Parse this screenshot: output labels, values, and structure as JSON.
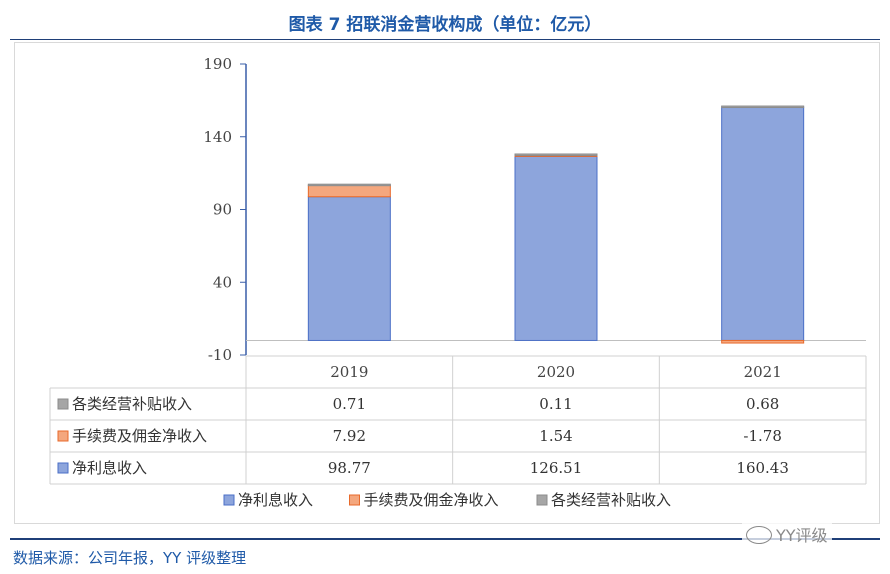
{
  "title": "图表 7 招联消金营收构成（单位：亿元）",
  "source": "数据来源：公司年报，YY 评级整理",
  "watermark": "YY评级",
  "chart_data": {
    "type": "bar",
    "stacked": true,
    "categories": [
      "2019",
      "2020",
      "2021"
    ],
    "ylim": [
      -10,
      190
    ],
    "yticks": [
      -10,
      40,
      90,
      140,
      190
    ],
    "series": [
      {
        "name": "净利息收入",
        "color": "#8da5dc",
        "values": [
          98.77,
          126.51,
          160.43
        ],
        "display": [
          "98.77",
          "126.51",
          "160.43"
        ]
      },
      {
        "name": "手续费及佣金净收入",
        "color": "#f4a77e",
        "values": [
          7.92,
          1.54,
          -1.78
        ],
        "display": [
          "7.92",
          "1.54",
          "-1.78"
        ]
      },
      {
        "name": "各类经营补贴收入",
        "color": "#a6a6a6",
        "values": [
          0.71,
          0.11,
          0.68
        ],
        "display": [
          "0.71",
          "0.11",
          "0.68"
        ]
      }
    ],
    "legend_position": "bottom",
    "data_table": true
  }
}
